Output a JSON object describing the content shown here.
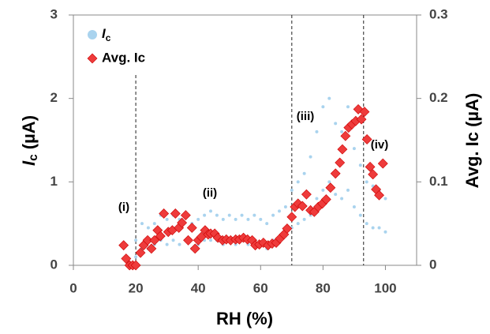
{
  "chart_data": {
    "type": "scatter",
    "xlabel": "RH (%)",
    "ylabel": "Ic (µA)",
    "y2label": "Avg. Ic (µA)",
    "xlim": [
      0,
      110
    ],
    "xticks": [
      0,
      20,
      40,
      60,
      80,
      100
    ],
    "ylim": [
      0,
      3
    ],
    "yticks": [
      0,
      1,
      2,
      3
    ],
    "y2lim": [
      0,
      0.3
    ],
    "y2ticks": [
      0,
      0.1,
      0.2,
      0.3
    ],
    "legend": "upper left",
    "vlines": [
      20,
      70,
      93
    ],
    "annotations": [
      "(i)",
      "(ii)",
      "(iii)",
      "(iv)"
    ],
    "series": [
      {
        "name": "Ic",
        "color": "#a9d3ee",
        "marker": "circle",
        "x": [
          20,
          22,
          24,
          26,
          28,
          30,
          32,
          34,
          36,
          38,
          40,
          42,
          44,
          46,
          48,
          50,
          52,
          54,
          56,
          58,
          60,
          62,
          64,
          66,
          68,
          70,
          72,
          74,
          76,
          78,
          80,
          82,
          84,
          86,
          88,
          90,
          92,
          94,
          96,
          98,
          100,
          20,
          22,
          24,
          26,
          28,
          30,
          32,
          34,
          36,
          38,
          40,
          42,
          44,
          46,
          48,
          50,
          52,
          54,
          56,
          58,
          60,
          62,
          64,
          66,
          68,
          70,
          72,
          74,
          76,
          78,
          80,
          82,
          84,
          86,
          88,
          90,
          92,
          94,
          96,
          98,
          100
        ],
        "values": [
          0.3,
          0.5,
          0.45,
          0.5,
          0.6,
          0.55,
          0.6,
          0.55,
          0.6,
          0.5,
          0.55,
          0.6,
          0.65,
          0.6,
          0.55,
          0.6,
          0.55,
          0.6,
          0.55,
          0.6,
          0.55,
          0.5,
          0.6,
          0.65,
          0.7,
          0.9,
          1.0,
          1.1,
          1.3,
          1.6,
          1.9,
          2.0,
          1.7,
          1.6,
          1.9,
          1.4,
          1.2,
          1.0,
          0.95,
          0.9,
          0.8,
          0.1,
          0.2,
          0.2,
          0.25,
          0.3,
          0.25,
          0.3,
          0.25,
          0.3,
          0.2,
          0.25,
          0.3,
          0.3,
          0.3,
          0.25,
          0.3,
          0.25,
          0.3,
          0.25,
          0.3,
          0.25,
          0.2,
          0.3,
          0.3,
          0.35,
          0.45,
          0.5,
          0.55,
          0.6,
          0.8,
          0.9,
          1.0,
          0.85,
          0.8,
          0.9,
          0.7,
          0.6,
          0.5,
          0.45,
          0.45,
          0.4
        ]
      },
      {
        "name": "Avg. Ic",
        "color": "#ee3b3b",
        "marker": "diamond",
        "axis": "y2",
        "x": [
          16.1,
          16.9,
          18,
          19,
          20,
          21.5,
          22.5,
          23.8,
          25,
          26,
          27,
          27.9,
          29,
          30.4,
          31.7,
          32.7,
          33.8,
          34.8,
          36,
          36.8,
          38,
          39,
          40,
          41,
          42.2,
          43.2,
          44,
          45.3,
          46.3,
          47.8,
          49,
          50.4,
          52,
          53.2,
          54.5,
          55.8,
          57.3,
          58.3,
          59.6,
          60.9,
          62.4,
          63.7,
          65,
          66.2,
          67.5,
          68.5,
          70,
          71,
          72,
          73.4,
          74.7,
          76,
          77.2,
          78.5,
          79.8,
          81,
          82.4,
          84,
          85.4,
          86.2,
          87.2,
          88.2,
          89.3,
          90.5,
          91.3,
          92.3,
          93.3,
          94.1,
          95.1,
          96,
          97,
          98,
          99.2
        ],
        "values": [
          0.024,
          0.008,
          0,
          0,
          0,
          0.015,
          0.024,
          0.03,
          0.02,
          0.03,
          0.042,
          0.035,
          0.062,
          0.04,
          0.042,
          0.062,
          0.045,
          0.051,
          0.06,
          0.03,
          0.045,
          0.02,
          0.03,
          0.034,
          0.042,
          0.037,
          0.038,
          0.038,
          0.033,
          0.03,
          0.031,
          0.03,
          0.031,
          0.031,
          0.033,
          0.031,
          0.03,
          0.024,
          0.025,
          0.027,
          0.024,
          0.026,
          0.027,
          0.032,
          0.037,
          0.044,
          0.058,
          0.07,
          0.074,
          0.071,
          0.085,
          0.066,
          0.064,
          0.07,
          0.074,
          0.079,
          0.093,
          0.11,
          0.123,
          0.139,
          0.155,
          0.165,
          0.169,
          0.173,
          0.187,
          0.175,
          0.184,
          0.151,
          0.118,
          0.109,
          0.091,
          0.084,
          0.122
        ]
      }
    ]
  }
}
